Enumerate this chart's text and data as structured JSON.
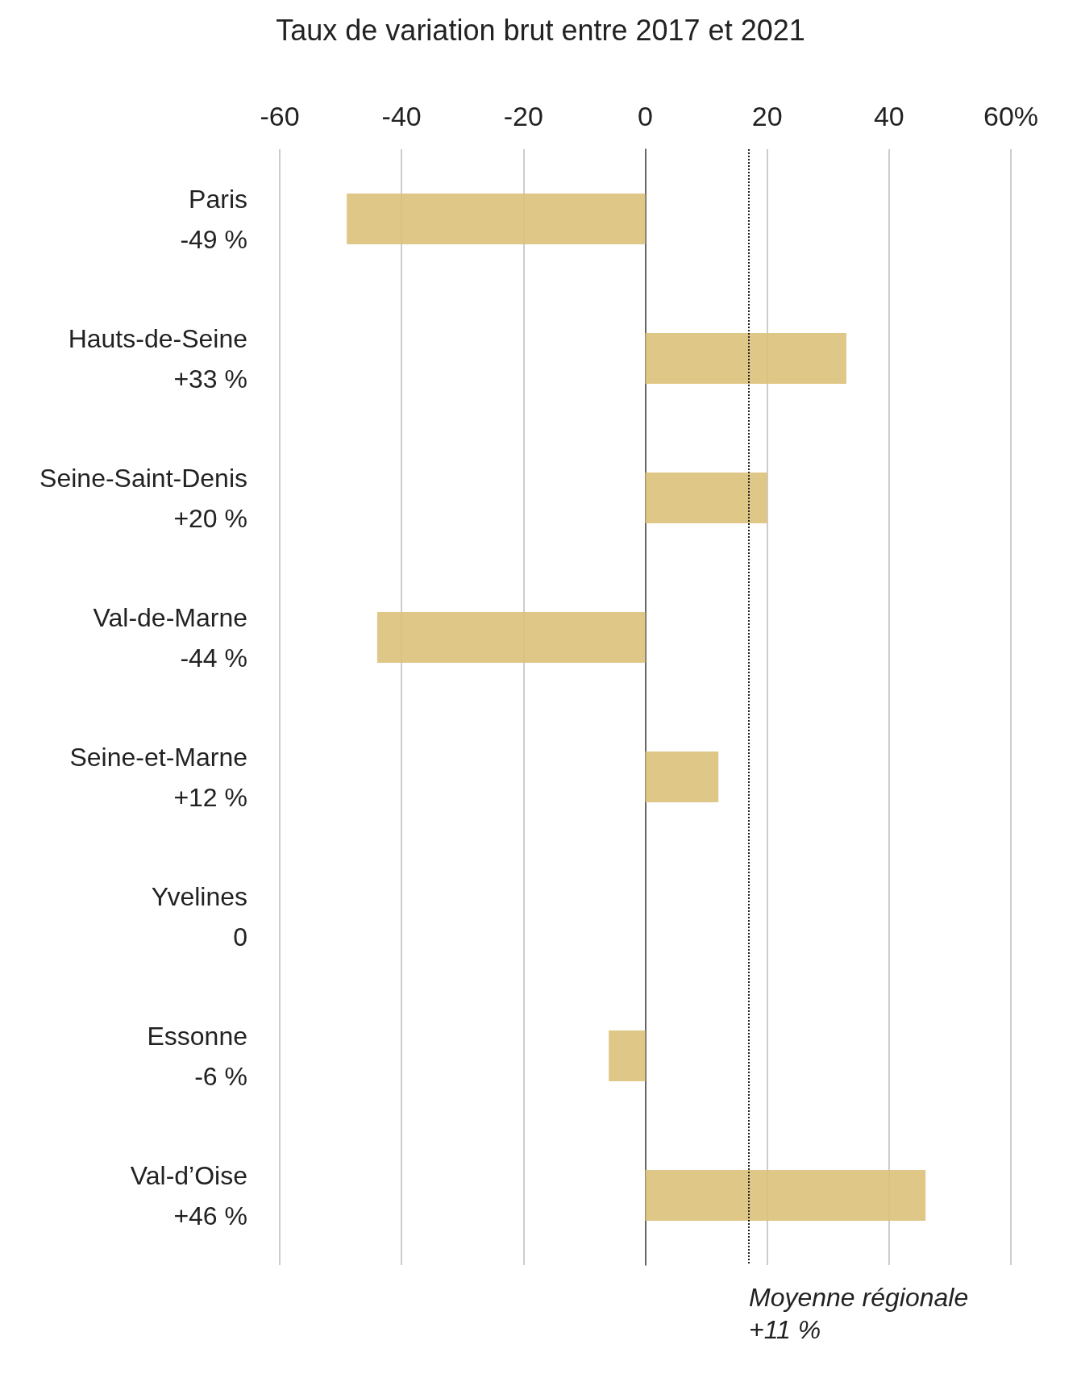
{
  "chart_data": {
    "type": "bar",
    "orientation": "horizontal",
    "title": "Taux de variation brut entre 2017 et 2021",
    "categories": [
      "Paris",
      "Hauts-de-Seine",
      "Seine-Saint-Denis",
      "Val-de-Marne",
      "Seine-et-Marne",
      "Yvelines",
      "Essonne",
      "Val-d’Oise"
    ],
    "values": [
      -49,
      33,
      20,
      -44,
      12,
      0,
      -6,
      46
    ],
    "value_labels": [
      "-49 %",
      "+33 %",
      "+20 %",
      "-44 %",
      "+12 %",
      "0",
      "-6 %",
      "+46 %"
    ],
    "color": "#dcc27a",
    "xlim": [
      -60,
      60
    ],
    "xticks": [
      -60,
      -40,
      -20,
      0,
      20,
      40,
      {
        "value": 60,
        "label": "60%"
      }
    ],
    "grid": "x",
    "ref_lines": [
      {
        "axis": "x",
        "value": 17,
        "label": "Moyenne régionale\n+11 %",
        "line_style": "dotted",
        "color": "#222222"
      }
    ]
  }
}
